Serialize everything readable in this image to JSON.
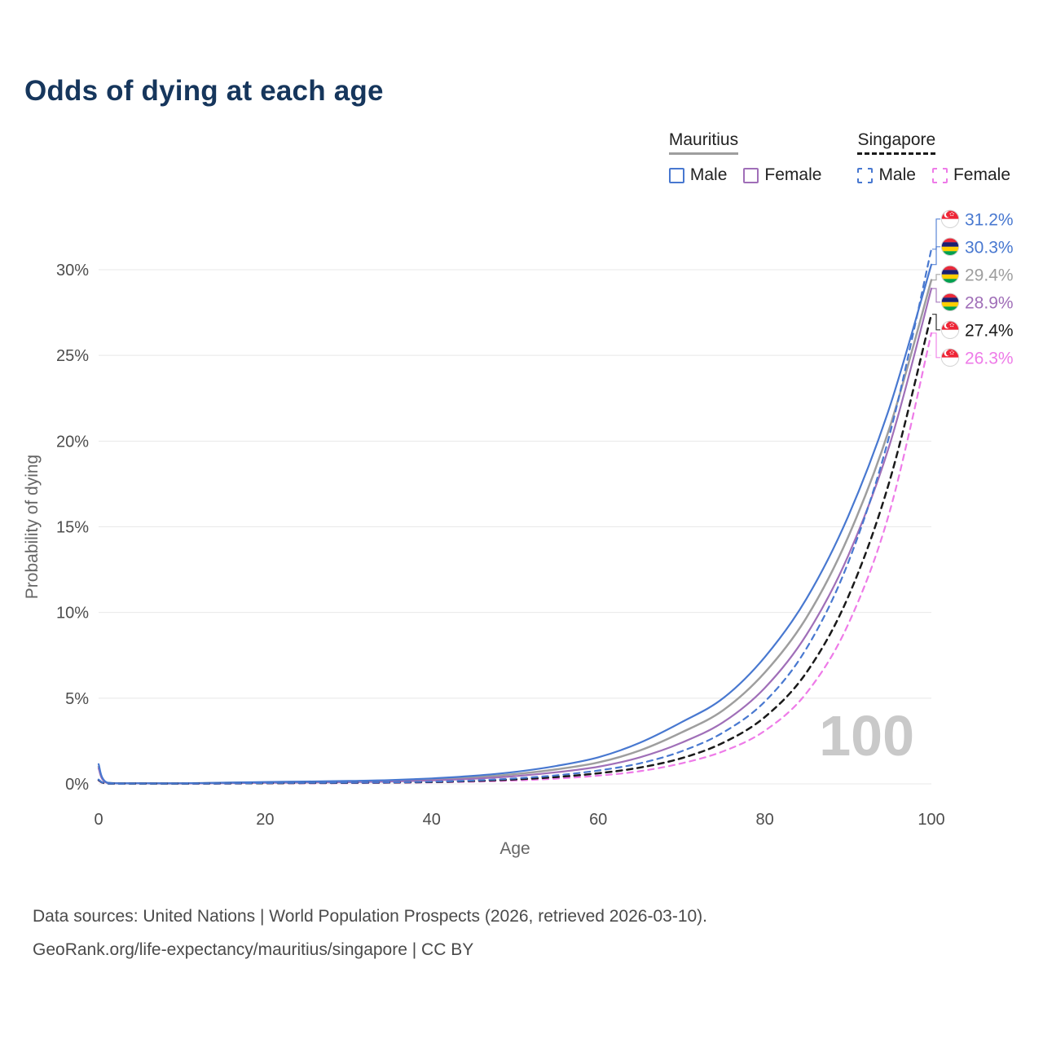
{
  "page": {
    "title": "Odds of dying at each age"
  },
  "legend": {
    "groups": [
      {
        "label": "Mauritius",
        "line_style": "solid",
        "line_color": "#9e9e9e",
        "items": [
          {
            "label": "Male",
            "color": "#4878d0",
            "style": "solid"
          },
          {
            "label": "Female",
            "color": "#a06fb8",
            "style": "solid"
          }
        ]
      },
      {
        "label": "Singapore",
        "line_style": "dashed",
        "line_color": "#1a1a1a",
        "items": [
          {
            "label": "Male",
            "color": "#4878d0",
            "style": "dashed"
          },
          {
            "label": "Female",
            "color": "#ee7be8",
            "style": "dashed"
          }
        ]
      }
    ]
  },
  "chart_data": {
    "type": "line",
    "title": "Odds of dying at each age",
    "xlabel": "Age",
    "ylabel": "Probability of dying",
    "xlim": [
      0,
      100
    ],
    "ylim": [
      0,
      33
    ],
    "grid": "horizontal",
    "legend_position": "top-right",
    "hover_age_label": "100",
    "x_ticks": [
      {
        "value": 0,
        "label": "0"
      },
      {
        "value": 20,
        "label": "20"
      },
      {
        "value": 40,
        "label": "40"
      },
      {
        "value": 60,
        "label": "60"
      },
      {
        "value": 80,
        "label": "80"
      },
      {
        "value": 100,
        "label": "100"
      }
    ],
    "y_ticks": [
      {
        "value": 0,
        "label": "0%"
      },
      {
        "value": 5,
        "label": "5%"
      },
      {
        "value": 10,
        "label": "10%"
      },
      {
        "value": 15,
        "label": "15%"
      },
      {
        "value": 20,
        "label": "20%"
      },
      {
        "value": 25,
        "label": "25%"
      },
      {
        "value": 30,
        "label": "30%"
      }
    ],
    "series": [
      {
        "name": "Mauritius Both sexes",
        "country": "Mauritius",
        "sex": "Both",
        "flag": "mu",
        "color": "#9e9e9e",
        "dash": false,
        "end_label": "29.4%",
        "end_value": 29.4,
        "points": [
          [
            0,
            1.0
          ],
          [
            1,
            0.07
          ],
          [
            5,
            0.035
          ],
          [
            10,
            0.03
          ],
          [
            15,
            0.06
          ],
          [
            20,
            0.09
          ],
          [
            25,
            0.11
          ],
          [
            30,
            0.14
          ],
          [
            35,
            0.18
          ],
          [
            40,
            0.26
          ],
          [
            45,
            0.38
          ],
          [
            50,
            0.57
          ],
          [
            55,
            0.85
          ],
          [
            60,
            1.25
          ],
          [
            65,
            1.95
          ],
          [
            70,
            3.0
          ],
          [
            75,
            4.3
          ],
          [
            80,
            6.5
          ],
          [
            85,
            9.7
          ],
          [
            90,
            14.4
          ],
          [
            95,
            20.8
          ],
          [
            100,
            29.4
          ]
        ]
      },
      {
        "name": "Mauritius Female",
        "country": "Mauritius",
        "sex": "Female",
        "flag": "mu",
        "color": "#a06fb8",
        "dash": false,
        "end_label": "28.9%",
        "end_value": 28.9,
        "points": [
          [
            0,
            0.9
          ],
          [
            1,
            0.06
          ],
          [
            5,
            0.03
          ],
          [
            10,
            0.025
          ],
          [
            15,
            0.04
          ],
          [
            20,
            0.06
          ],
          [
            25,
            0.08
          ],
          [
            30,
            0.1
          ],
          [
            35,
            0.14
          ],
          [
            40,
            0.2
          ],
          [
            45,
            0.3
          ],
          [
            50,
            0.45
          ],
          [
            55,
            0.68
          ],
          [
            60,
            1.0
          ],
          [
            65,
            1.55
          ],
          [
            70,
            2.4
          ],
          [
            75,
            3.6
          ],
          [
            80,
            5.6
          ],
          [
            85,
            8.7
          ],
          [
            90,
            13.3
          ],
          [
            95,
            19.8
          ],
          [
            100,
            28.9
          ]
        ]
      },
      {
        "name": "Mauritius Male",
        "country": "Mauritius",
        "sex": "Male",
        "flag": "mu",
        "color": "#4878d0",
        "dash": false,
        "end_label": "30.3%",
        "end_value": 30.3,
        "points": [
          [
            0,
            1.15
          ],
          [
            1,
            0.08
          ],
          [
            5,
            0.04
          ],
          [
            10,
            0.04
          ],
          [
            15,
            0.07
          ],
          [
            20,
            0.11
          ],
          [
            25,
            0.14
          ],
          [
            30,
            0.17
          ],
          [
            35,
            0.22
          ],
          [
            40,
            0.32
          ],
          [
            45,
            0.47
          ],
          [
            50,
            0.7
          ],
          [
            55,
            1.05
          ],
          [
            60,
            1.55
          ],
          [
            65,
            2.4
          ],
          [
            70,
            3.6
          ],
          [
            75,
            5.0
          ],
          [
            80,
            7.4
          ],
          [
            85,
            10.8
          ],
          [
            90,
            15.6
          ],
          [
            95,
            22.0
          ],
          [
            100,
            30.3
          ]
        ]
      },
      {
        "name": "Singapore Female",
        "country": "Singapore",
        "sex": "Female",
        "flag": "sg",
        "color": "#ee7be8",
        "dash": true,
        "end_label": "26.3%",
        "end_value": 26.3,
        "points": [
          [
            0,
            0.2
          ],
          [
            1,
            0.02
          ],
          [
            5,
            0.01
          ],
          [
            10,
            0.01
          ],
          [
            15,
            0.02
          ],
          [
            20,
            0.03
          ],
          [
            25,
            0.035
          ],
          [
            30,
            0.045
          ],
          [
            35,
            0.06
          ],
          [
            40,
            0.09
          ],
          [
            45,
            0.13
          ],
          [
            50,
            0.2
          ],
          [
            55,
            0.31
          ],
          [
            60,
            0.48
          ],
          [
            65,
            0.74
          ],
          [
            70,
            1.2
          ],
          [
            75,
            1.9
          ],
          [
            80,
            3.1
          ],
          [
            85,
            5.3
          ],
          [
            90,
            9.3
          ],
          [
            95,
            15.9
          ],
          [
            100,
            26.3
          ]
        ]
      },
      {
        "name": "Singapore Both sexes",
        "country": "Singapore",
        "sex": "Both",
        "flag": "sg",
        "color": "#1a1a1a",
        "dash": true,
        "end_label": "27.4%",
        "end_value": 27.4,
        "points": [
          [
            0,
            0.22
          ],
          [
            1,
            0.025
          ],
          [
            5,
            0.012
          ],
          [
            10,
            0.012
          ],
          [
            15,
            0.025
          ],
          [
            20,
            0.04
          ],
          [
            25,
            0.05
          ],
          [
            30,
            0.06
          ],
          [
            35,
            0.08
          ],
          [
            40,
            0.11
          ],
          [
            45,
            0.17
          ],
          [
            50,
            0.26
          ],
          [
            55,
            0.4
          ],
          [
            60,
            0.62
          ],
          [
            65,
            0.95
          ],
          [
            70,
            1.5
          ],
          [
            75,
            2.4
          ],
          [
            80,
            3.9
          ],
          [
            85,
            6.5
          ],
          [
            90,
            10.9
          ],
          [
            95,
            17.7
          ],
          [
            100,
            27.4
          ]
        ]
      },
      {
        "name": "Singapore Male",
        "country": "Singapore",
        "sex": "Male",
        "flag": "sg",
        "color": "#4878d0",
        "dash": true,
        "end_label": "31.2%",
        "end_value": 31.2,
        "points": [
          [
            0,
            0.25
          ],
          [
            1,
            0.03
          ],
          [
            5,
            0.015
          ],
          [
            10,
            0.015
          ],
          [
            15,
            0.03
          ],
          [
            20,
            0.05
          ],
          [
            25,
            0.06
          ],
          [
            30,
            0.07
          ],
          [
            35,
            0.09
          ],
          [
            40,
            0.13
          ],
          [
            45,
            0.2
          ],
          [
            50,
            0.32
          ],
          [
            55,
            0.5
          ],
          [
            60,
            0.78
          ],
          [
            65,
            1.2
          ],
          [
            70,
            1.9
          ],
          [
            75,
            3.0
          ],
          [
            80,
            4.8
          ],
          [
            85,
            7.9
          ],
          [
            90,
            12.9
          ],
          [
            95,
            20.4
          ],
          [
            100,
            31.2
          ]
        ]
      }
    ]
  },
  "footer": {
    "line1": "Data sources: United Nations | World Population Prospects (2026, retrieved 2026-03-10).",
    "line2": "GeoRank.org/life-expectancy/mauritius/singapore | CC BY"
  }
}
